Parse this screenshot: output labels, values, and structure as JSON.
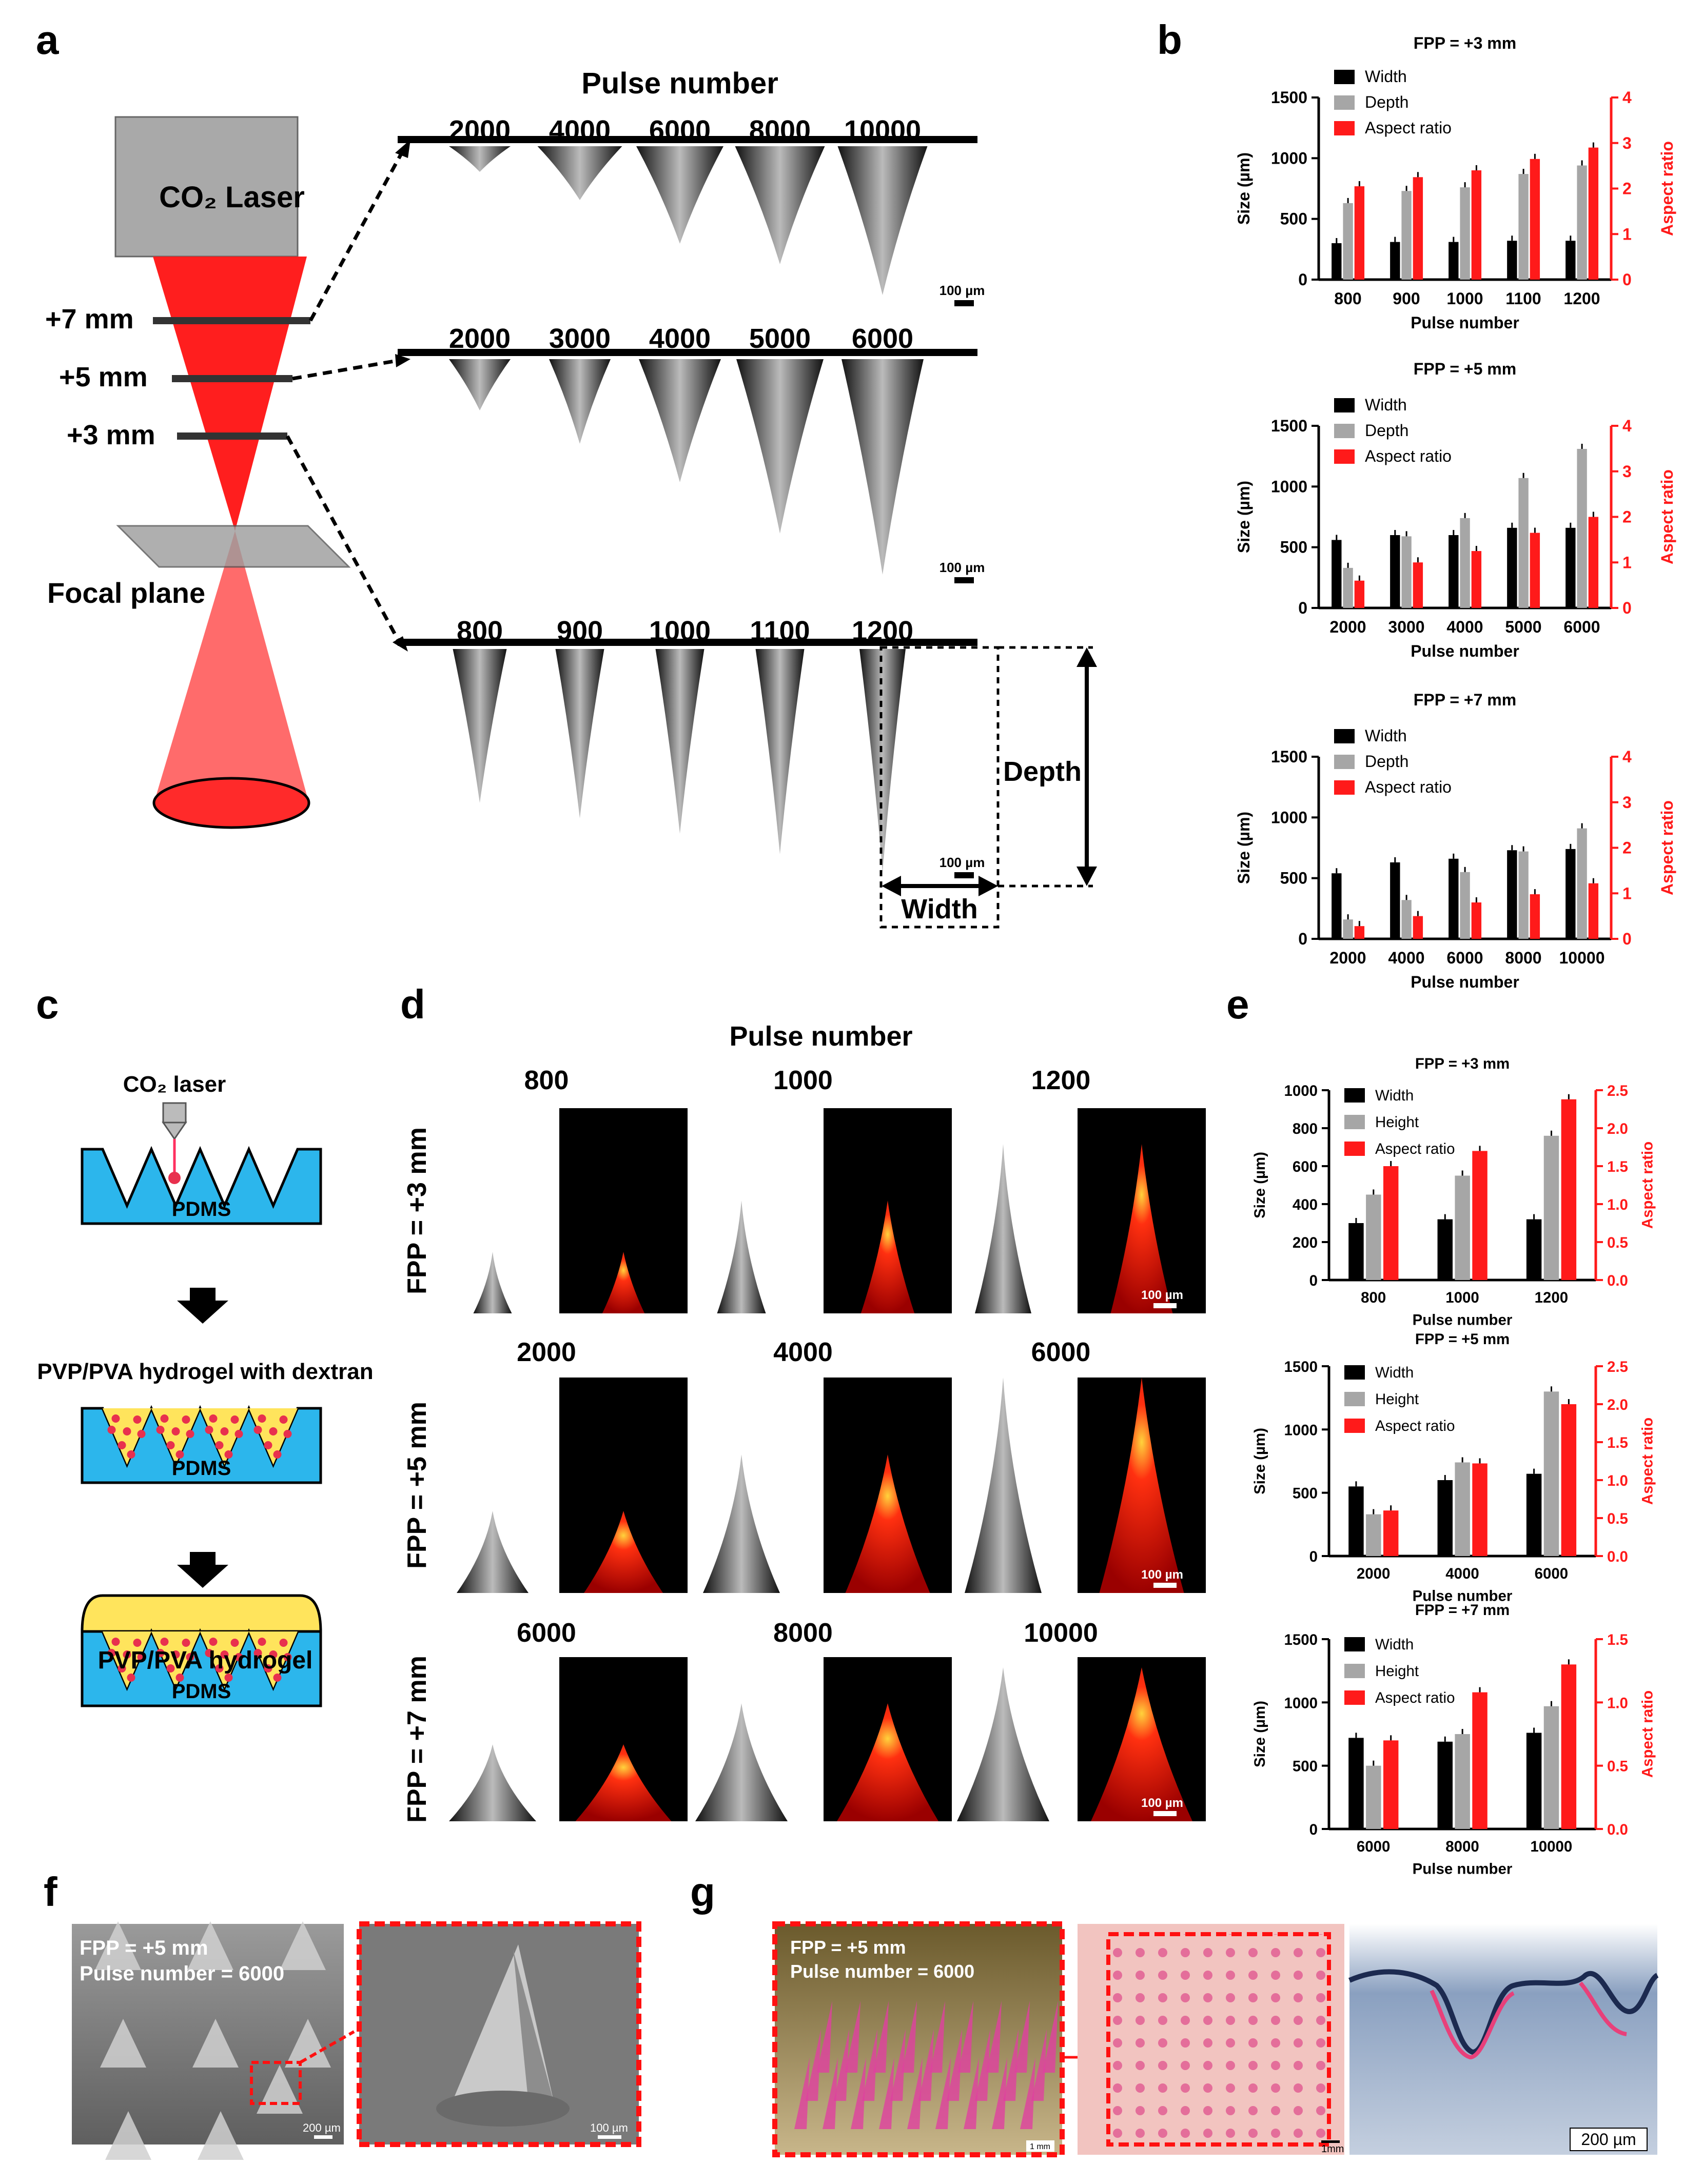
{
  "panels": {
    "a": "a",
    "b": "b",
    "c": "c",
    "d": "d",
    "e": "e",
    "f": "f",
    "g": "g"
  },
  "panel_a": {
    "heading": "Pulse number",
    "laser": "CO₂ Laser",
    "levels": [
      "+7 mm",
      "+5 mm",
      "+3 mm"
    ],
    "focal": "Focal plane",
    "row1": [
      "2000",
      "4000",
      "6000",
      "8000",
      "10000"
    ],
    "row2": [
      "2000",
      "3000",
      "4000",
      "5000",
      "6000"
    ],
    "row3": [
      "800",
      "900",
      "1000",
      "1100",
      "1200"
    ],
    "scale": "100 µm",
    "depth": "Depth",
    "width": "Width",
    "colors": {
      "laser_head": "#a9a9a9",
      "beam": "#ff1e1e",
      "beam_light": "#ff6b6b"
    }
  },
  "chart_data": [
    {
      "type": "bar",
      "title": "FPP = +3 mm",
      "xlabel": "Pulse number",
      "ylabel": "Size (µm)",
      "y2label": "Aspect ratio",
      "categories": [
        "800",
        "900",
        "1000",
        "1100",
        "1200"
      ],
      "ylim": [
        0,
        1500
      ],
      "y2lim": [
        0,
        4
      ],
      "yticks": [
        "0",
        "500",
        "1000",
        "1500"
      ],
      "y2ticks": [
        "0",
        "1",
        "2",
        "3",
        "4"
      ],
      "series": [
        {
          "name": "Width",
          "axis": "left",
          "color": "#000000",
          "values": [
            300,
            310,
            310,
            320,
            320
          ]
        },
        {
          "name": "Depth",
          "axis": "left",
          "color": "#a6a6a6",
          "values": [
            630,
            730,
            760,
            870,
            940
          ]
        },
        {
          "name": "Aspect ratio",
          "axis": "right",
          "color": "#ff1a1a",
          "values": [
            2.05,
            2.25,
            2.4,
            2.65,
            2.9
          ]
        }
      ]
    },
    {
      "type": "bar",
      "title": "FPP = +5 mm",
      "xlabel": "Pulse number",
      "ylabel": "Size (µm)",
      "y2label": "Aspect ratio",
      "categories": [
        "2000",
        "3000",
        "4000",
        "5000",
        "6000"
      ],
      "ylim": [
        0,
        1500
      ],
      "y2lim": [
        0,
        4
      ],
      "yticks": [
        "0",
        "500",
        "1000",
        "1500"
      ],
      "y2ticks": [
        "0",
        "1",
        "2",
        "3",
        "4"
      ],
      "series": [
        {
          "name": "Width",
          "axis": "left",
          "color": "#000000",
          "values": [
            560,
            600,
            600,
            660,
            660
          ]
        },
        {
          "name": "Depth",
          "axis": "left",
          "color": "#a6a6a6",
          "values": [
            330,
            590,
            740,
            1070,
            1310
          ]
        },
        {
          "name": "Aspect ratio",
          "axis": "right",
          "color": "#ff1a1a",
          "values": [
            0.6,
            1.0,
            1.25,
            1.65,
            2.0
          ]
        }
      ]
    },
    {
      "type": "bar",
      "title": "FPP = +7 mm",
      "xlabel": "Pulse number",
      "ylabel": "Size (µm)",
      "y2label": "Aspect ratio",
      "categories": [
        "2000",
        "4000",
        "6000",
        "8000",
        "10000"
      ],
      "ylim": [
        0,
        1500
      ],
      "y2lim": [
        0,
        4
      ],
      "yticks": [
        "0",
        "500",
        "1000",
        "1500"
      ],
      "y2ticks": [
        "0",
        "1",
        "2",
        "3",
        "4"
      ],
      "series": [
        {
          "name": "Width",
          "axis": "left",
          "color": "#000000",
          "values": [
            540,
            630,
            660,
            730,
            740
          ]
        },
        {
          "name": "Depth",
          "axis": "left",
          "color": "#a6a6a6",
          "values": [
            160,
            320,
            550,
            720,
            910
          ]
        },
        {
          "name": "Aspect ratio",
          "axis": "right",
          "color": "#ff1a1a",
          "values": [
            0.28,
            0.5,
            0.8,
            0.98,
            1.22
          ]
        }
      ]
    },
    {
      "type": "bar",
      "title": "FPP = +3 mm",
      "xlabel": "Pulse number",
      "ylabel": "Size (µm)",
      "y2label": "Aspect ratio",
      "categories": [
        "800",
        "1000",
        "1200"
      ],
      "ylim": [
        0,
        1000
      ],
      "y2lim": [
        0,
        2.5
      ],
      "yticks": [
        "0",
        "200",
        "400",
        "600",
        "800",
        "1000"
      ],
      "y2ticks": [
        "0.0",
        "0.5",
        "1.0",
        "1.5",
        "2.0",
        "2.5"
      ],
      "series": [
        {
          "name": "Width",
          "axis": "left",
          "color": "#000000",
          "values": [
            300,
            320,
            320
          ]
        },
        {
          "name": "Height",
          "axis": "left",
          "color": "#a6a6a6",
          "values": [
            450,
            550,
            760
          ]
        },
        {
          "name": "Aspect ratio",
          "axis": "right",
          "color": "#ff1a1a",
          "values": [
            1.5,
            1.7,
            2.38
          ]
        }
      ]
    },
    {
      "type": "bar",
      "title": "FPP = +5 mm",
      "xlabel": "Pulse number",
      "ylabel": "Size (µm)",
      "y2label": "Aspect ratio",
      "categories": [
        "2000",
        "4000",
        "6000"
      ],
      "ylim": [
        0,
        1500
      ],
      "y2lim": [
        0,
        2.5
      ],
      "yticks": [
        "0",
        "500",
        "1000",
        "1500"
      ],
      "y2ticks": [
        "0.0",
        "0.5",
        "1.0",
        "1.5",
        "2.0",
        "2.5"
      ],
      "series": [
        {
          "name": "Width",
          "axis": "left",
          "color": "#000000",
          "values": [
            550,
            600,
            650
          ]
        },
        {
          "name": "Height",
          "axis": "left",
          "color": "#a6a6a6",
          "values": [
            330,
            740,
            1300
          ]
        },
        {
          "name": "Aspect ratio",
          "axis": "right",
          "color": "#ff1a1a",
          "values": [
            0.6,
            1.22,
            2.0
          ]
        }
      ]
    },
    {
      "type": "bar",
      "title": "FPP = +7 mm",
      "xlabel": "Pulse number",
      "ylabel": "Size (µm)",
      "y2label": "Aspect ratio",
      "categories": [
        "6000",
        "8000",
        "10000"
      ],
      "ylim": [
        0,
        1500
      ],
      "y2lim": [
        0,
        1.5
      ],
      "yticks": [
        "0",
        "500",
        "1000",
        "1500"
      ],
      "y2ticks": [
        "0.0",
        "0.5",
        "1.0",
        "1.5"
      ],
      "series": [
        {
          "name": "Width",
          "axis": "left",
          "color": "#000000",
          "values": [
            720,
            690,
            760
          ]
        },
        {
          "name": "Height",
          "axis": "left",
          "color": "#a6a6a6",
          "values": [
            500,
            750,
            970
          ]
        },
        {
          "name": "Aspect ratio",
          "axis": "right",
          "color": "#ff1a1a",
          "values": [
            0.7,
            1.08,
            1.3
          ]
        }
      ]
    }
  ],
  "panel_c": {
    "laser": "CO₂ laser",
    "mold": "PDMS",
    "step2": "PVP/PVA  hydrogel with dextran",
    "step3": "PVP/PVA  hydrogel",
    "colors": {
      "mold": "#2cb6ec",
      "hydrogel": "#ffe45c",
      "dots": "#e8304e"
    }
  },
  "panel_d": {
    "heading": "Pulse number",
    "rows": [
      {
        "label": "FPP = +3 mm",
        "pulses": [
          "800",
          "1000",
          "1200"
        ]
      },
      {
        "label": "FPP = +5 mm",
        "pulses": [
          "2000",
          "4000",
          "6000"
        ]
      },
      {
        "label": "FPP = +7 mm",
        "pulses": [
          "6000",
          "8000",
          "10000"
        ]
      }
    ],
    "scale": "100 µm"
  },
  "panel_f": {
    "line1": "FPP = +5 mm",
    "line2": "Pulse number = 6000",
    "scale1": "200 µm",
    "scale2": "100 µm"
  },
  "panel_g": {
    "line1": "FPP = +5 mm",
    "line2": "Pulse number = 6000",
    "scale1": "1 mm",
    "scale2": "1mm",
    "scale3": "200 µm"
  }
}
